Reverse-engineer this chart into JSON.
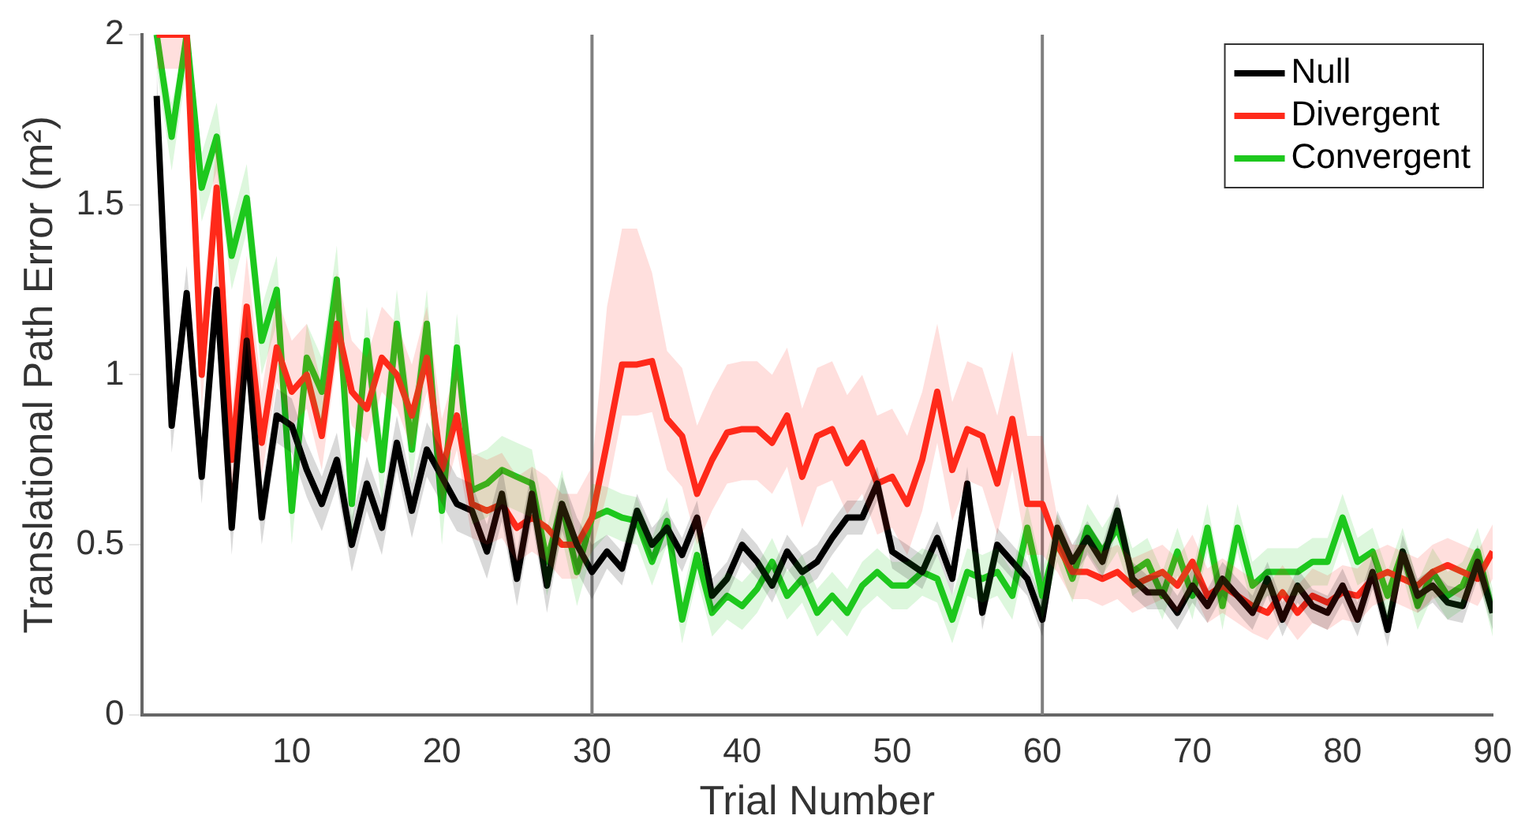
{
  "chart_data": {
    "type": "line",
    "xlabel": "Trial Number",
    "ylabel": "Translational Path Error (m²)",
    "x": [
      1,
      2,
      3,
      4,
      5,
      6,
      7,
      8,
      9,
      10,
      11,
      12,
      13,
      14,
      15,
      16,
      17,
      18,
      19,
      20,
      21,
      22,
      23,
      24,
      25,
      26,
      27,
      28,
      29,
      30,
      31,
      32,
      33,
      34,
      35,
      36,
      37,
      38,
      39,
      40,
      41,
      42,
      43,
      44,
      45,
      46,
      47,
      48,
      49,
      50,
      51,
      52,
      53,
      54,
      55,
      56,
      57,
      58,
      59,
      60,
      61,
      62,
      63,
      64,
      65,
      66,
      67,
      68,
      69,
      70,
      71,
      72,
      73,
      74,
      75,
      76,
      77,
      78,
      79,
      80,
      81,
      82,
      83,
      84,
      85,
      86,
      87,
      88,
      89,
      90
    ],
    "xlim": [
      0,
      90
    ],
    "xticks": [
      10,
      20,
      30,
      40,
      50,
      60,
      70,
      80,
      90
    ],
    "ylim": [
      0,
      2
    ],
    "yticks": [
      0,
      0.5,
      1,
      1.5,
      2
    ],
    "grid": false,
    "legend": "top right",
    "marker": "none",
    "line_style": "solid",
    "ref_lines": [
      {
        "axis": "x",
        "value": 30,
        "color": "#808080"
      },
      {
        "axis": "x",
        "value": 60,
        "color": "#808080"
      }
    ],
    "series": [
      {
        "name": "Null",
        "color": "#000000",
        "values": [
          1.82,
          0.85,
          1.24,
          0.7,
          1.25,
          0.55,
          1.1,
          0.58,
          0.88,
          0.85,
          0.72,
          0.62,
          0.75,
          0.5,
          0.68,
          0.55,
          0.8,
          0.6,
          0.78,
          0.7,
          0.62,
          0.6,
          0.48,
          0.65,
          0.4,
          0.65,
          0.38,
          0.62,
          0.5,
          0.42,
          0.48,
          0.43,
          0.6,
          0.5,
          0.55,
          0.47,
          0.58,
          0.35,
          0.4,
          0.5,
          0.45,
          0.38,
          0.48,
          0.42,
          0.45,
          0.52,
          0.58,
          0.58,
          0.68,
          0.48,
          0.45,
          0.42,
          0.52,
          0.4,
          0.68,
          0.3,
          0.5,
          0.45,
          0.4,
          0.28,
          0.55,
          0.45,
          0.52,
          0.45,
          0.6,
          0.4,
          0.36,
          0.36,
          0.3,
          0.38,
          0.32,
          0.4,
          0.35,
          0.3,
          0.4,
          0.28,
          0.38,
          0.32,
          0.3,
          0.38,
          0.28,
          0.42,
          0.25,
          0.48,
          0.35,
          0.38,
          0.33,
          0.32,
          0.45,
          0.3
        ],
        "lower": [
          1.74,
          0.77,
          1.16,
          0.62,
          1.17,
          0.47,
          1.02,
          0.5,
          0.8,
          0.77,
          0.64,
          0.54,
          0.67,
          0.42,
          0.6,
          0.47,
          0.72,
          0.52,
          0.7,
          0.62,
          0.54,
          0.52,
          0.4,
          0.57,
          0.32,
          0.57,
          0.3,
          0.54,
          0.42,
          0.34,
          0.43,
          0.38,
          0.55,
          0.45,
          0.5,
          0.42,
          0.53,
          0.3,
          0.35,
          0.45,
          0.4,
          0.33,
          0.43,
          0.37,
          0.4,
          0.47,
          0.53,
          0.53,
          0.63,
          0.43,
          0.4,
          0.37,
          0.47,
          0.35,
          0.63,
          0.25,
          0.45,
          0.4,
          0.35,
          0.23,
          0.5,
          0.4,
          0.47,
          0.4,
          0.55,
          0.35,
          0.31,
          0.31,
          0.25,
          0.33,
          0.27,
          0.35,
          0.3,
          0.25,
          0.35,
          0.23,
          0.33,
          0.27,
          0.25,
          0.33,
          0.23,
          0.37,
          0.2,
          0.43,
          0.3,
          0.33,
          0.28,
          0.27,
          0.4,
          0.25
        ],
        "upper": [
          1.9,
          0.93,
          1.32,
          0.78,
          1.33,
          0.63,
          1.18,
          0.66,
          0.96,
          0.93,
          0.8,
          0.7,
          0.83,
          0.58,
          0.76,
          0.63,
          0.88,
          0.68,
          0.86,
          0.78,
          0.7,
          0.68,
          0.56,
          0.73,
          0.48,
          0.73,
          0.46,
          0.7,
          0.58,
          0.5,
          0.53,
          0.48,
          0.65,
          0.55,
          0.6,
          0.52,
          0.63,
          0.4,
          0.45,
          0.55,
          0.5,
          0.43,
          0.53,
          0.47,
          0.5,
          0.57,
          0.63,
          0.63,
          0.73,
          0.53,
          0.5,
          0.47,
          0.57,
          0.45,
          0.73,
          0.35,
          0.55,
          0.5,
          0.45,
          0.33,
          0.6,
          0.5,
          0.57,
          0.5,
          0.65,
          0.45,
          0.41,
          0.41,
          0.35,
          0.43,
          0.37,
          0.45,
          0.4,
          0.35,
          0.45,
          0.33,
          0.43,
          0.37,
          0.35,
          0.43,
          0.33,
          0.47,
          0.3,
          0.53,
          0.4,
          0.43,
          0.38,
          0.37,
          0.5,
          0.35
        ]
      },
      {
        "name": "Divergent",
        "color": "#ff2a1a",
        "values": [
          2,
          2,
          2,
          1.0,
          1.55,
          0.75,
          1.2,
          0.8,
          1.08,
          0.95,
          1.0,
          0.82,
          1.15,
          0.95,
          0.9,
          1.05,
          1.0,
          0.88,
          1.05,
          0.72,
          0.88,
          0.62,
          0.6,
          0.62,
          0.55,
          0.58,
          0.55,
          0.5,
          0.5,
          0.58,
          0.8,
          1.03,
          1.03,
          1.04,
          0.87,
          0.82,
          0.65,
          0.75,
          0.83,
          0.84,
          0.84,
          0.8,
          0.88,
          0.7,
          0.82,
          0.84,
          0.74,
          0.8,
          0.68,
          0.7,
          0.62,
          0.75,
          0.95,
          0.72,
          0.84,
          0.82,
          0.68,
          0.87,
          0.62,
          0.62,
          0.5,
          0.42,
          0.42,
          0.4,
          0.42,
          0.38,
          0.4,
          0.42,
          0.38,
          0.45,
          0.35,
          0.38,
          0.35,
          0.32,
          0.3,
          0.36,
          0.3,
          0.35,
          0.33,
          0.36,
          0.35,
          0.4,
          0.42,
          0.4,
          0.38,
          0.42,
          0.44,
          0.42,
          0.4,
          0.48
        ],
        "lower": [
          1.9,
          1.9,
          1.9,
          0.9,
          1.45,
          0.65,
          1.1,
          0.7,
          0.98,
          0.85,
          0.9,
          0.72,
          1.05,
          0.85,
          0.8,
          0.95,
          0.9,
          0.78,
          0.95,
          0.62,
          0.78,
          0.52,
          0.5,
          0.52,
          0.45,
          0.48,
          0.45,
          0.4,
          0.4,
          0.48,
          0.65,
          0.88,
          0.88,
          0.89,
          0.72,
          0.67,
          0.5,
          0.6,
          0.68,
          0.69,
          0.69,
          0.65,
          0.73,
          0.55,
          0.67,
          0.69,
          0.59,
          0.65,
          0.53,
          0.55,
          0.47,
          0.6,
          0.8,
          0.57,
          0.69,
          0.67,
          0.53,
          0.72,
          0.47,
          0.47,
          0.42,
          0.34,
          0.34,
          0.32,
          0.34,
          0.3,
          0.32,
          0.34,
          0.3,
          0.37,
          0.27,
          0.3,
          0.27,
          0.24,
          0.22,
          0.28,
          0.22,
          0.27,
          0.25,
          0.28,
          0.27,
          0.32,
          0.34,
          0.32,
          0.3,
          0.34,
          0.36,
          0.34,
          0.32,
          0.4
        ],
        "upper": [
          2,
          2,
          2,
          1.15,
          1.7,
          0.9,
          1.35,
          0.95,
          1.23,
          1.1,
          1.15,
          0.97,
          1.3,
          1.1,
          1.05,
          1.2,
          1.15,
          1.03,
          1.2,
          0.87,
          1.03,
          0.77,
          0.75,
          0.77,
          0.7,
          0.73,
          0.7,
          0.65,
          0.65,
          0.73,
          1.2,
          1.43,
          1.43,
          1.3,
          1.07,
          1.02,
          0.85,
          0.95,
          1.03,
          1.04,
          1.04,
          1.0,
          1.08,
          0.9,
          1.02,
          1.04,
          0.94,
          1.0,
          0.88,
          0.9,
          0.82,
          0.95,
          1.15,
          0.92,
          1.04,
          1.02,
          0.88,
          1.07,
          0.82,
          0.82,
          0.58,
          0.5,
          0.5,
          0.48,
          0.5,
          0.46,
          0.48,
          0.5,
          0.46,
          0.53,
          0.43,
          0.46,
          0.43,
          0.4,
          0.38,
          0.44,
          0.38,
          0.43,
          0.41,
          0.44,
          0.43,
          0.48,
          0.5,
          0.48,
          0.46,
          0.5,
          0.52,
          0.5,
          0.48,
          0.56
        ]
      },
      {
        "name": "Convergent",
        "color": "#1ec81e",
        "values": [
          2,
          1.7,
          2,
          1.55,
          1.7,
          1.35,
          1.52,
          1.1,
          1.25,
          0.6,
          1.05,
          0.95,
          1.28,
          0.62,
          1.1,
          0.72,
          1.15,
          0.78,
          1.15,
          0.6,
          1.08,
          0.66,
          0.68,
          0.72,
          0.7,
          0.68,
          0.45,
          0.62,
          0.42,
          0.58,
          0.6,
          0.58,
          0.57,
          0.45,
          0.57,
          0.28,
          0.47,
          0.3,
          0.35,
          0.32,
          0.37,
          0.45,
          0.35,
          0.4,
          0.3,
          0.35,
          0.3,
          0.38,
          0.42,
          0.38,
          0.38,
          0.42,
          0.4,
          0.28,
          0.42,
          0.4,
          0.42,
          0.35,
          0.55,
          0.35,
          0.52,
          0.4,
          0.55,
          0.48,
          0.55,
          0.42,
          0.45,
          0.35,
          0.48,
          0.35,
          0.55,
          0.32,
          0.55,
          0.38,
          0.42,
          0.42,
          0.42,
          0.45,
          0.45,
          0.58,
          0.45,
          0.48,
          0.35,
          0.48,
          0.32,
          0.42,
          0.35,
          0.38,
          0.48,
          0.3
        ],
        "lower": [
          1.9,
          1.6,
          1.9,
          1.45,
          1.6,
          1.25,
          1.42,
          1.0,
          1.15,
          0.5,
          0.95,
          0.85,
          1.18,
          0.52,
          1.0,
          0.62,
          1.05,
          0.68,
          1.05,
          0.5,
          0.98,
          0.56,
          0.58,
          0.62,
          0.6,
          0.58,
          0.35,
          0.52,
          0.32,
          0.48,
          0.53,
          0.51,
          0.5,
          0.38,
          0.5,
          0.21,
          0.4,
          0.23,
          0.28,
          0.25,
          0.3,
          0.38,
          0.28,
          0.33,
          0.23,
          0.28,
          0.23,
          0.31,
          0.35,
          0.31,
          0.31,
          0.35,
          0.33,
          0.21,
          0.35,
          0.33,
          0.35,
          0.28,
          0.48,
          0.28,
          0.45,
          0.33,
          0.48,
          0.41,
          0.48,
          0.35,
          0.38,
          0.28,
          0.41,
          0.28,
          0.48,
          0.25,
          0.48,
          0.31,
          0.35,
          0.35,
          0.35,
          0.38,
          0.38,
          0.51,
          0.38,
          0.41,
          0.28,
          0.41,
          0.25,
          0.35,
          0.28,
          0.31,
          0.41,
          0.23
        ],
        "upper": [
          2,
          1.8,
          2,
          1.65,
          1.8,
          1.45,
          1.62,
          1.2,
          1.35,
          0.7,
          1.15,
          1.05,
          1.38,
          0.72,
          1.2,
          0.82,
          1.25,
          0.88,
          1.25,
          0.7,
          1.18,
          0.76,
          0.78,
          0.82,
          0.8,
          0.78,
          0.55,
          0.72,
          0.52,
          0.68,
          0.67,
          0.65,
          0.64,
          0.52,
          0.64,
          0.35,
          0.54,
          0.37,
          0.42,
          0.39,
          0.44,
          0.52,
          0.42,
          0.47,
          0.37,
          0.42,
          0.37,
          0.45,
          0.49,
          0.45,
          0.45,
          0.49,
          0.47,
          0.35,
          0.49,
          0.47,
          0.49,
          0.42,
          0.62,
          0.42,
          0.59,
          0.47,
          0.62,
          0.55,
          0.62,
          0.49,
          0.52,
          0.42,
          0.55,
          0.42,
          0.62,
          0.39,
          0.62,
          0.45,
          0.49,
          0.49,
          0.49,
          0.52,
          0.52,
          0.65,
          0.52,
          0.55,
          0.42,
          0.55,
          0.39,
          0.49,
          0.42,
          0.45,
          0.55,
          0.37
        ]
      }
    ]
  }
}
